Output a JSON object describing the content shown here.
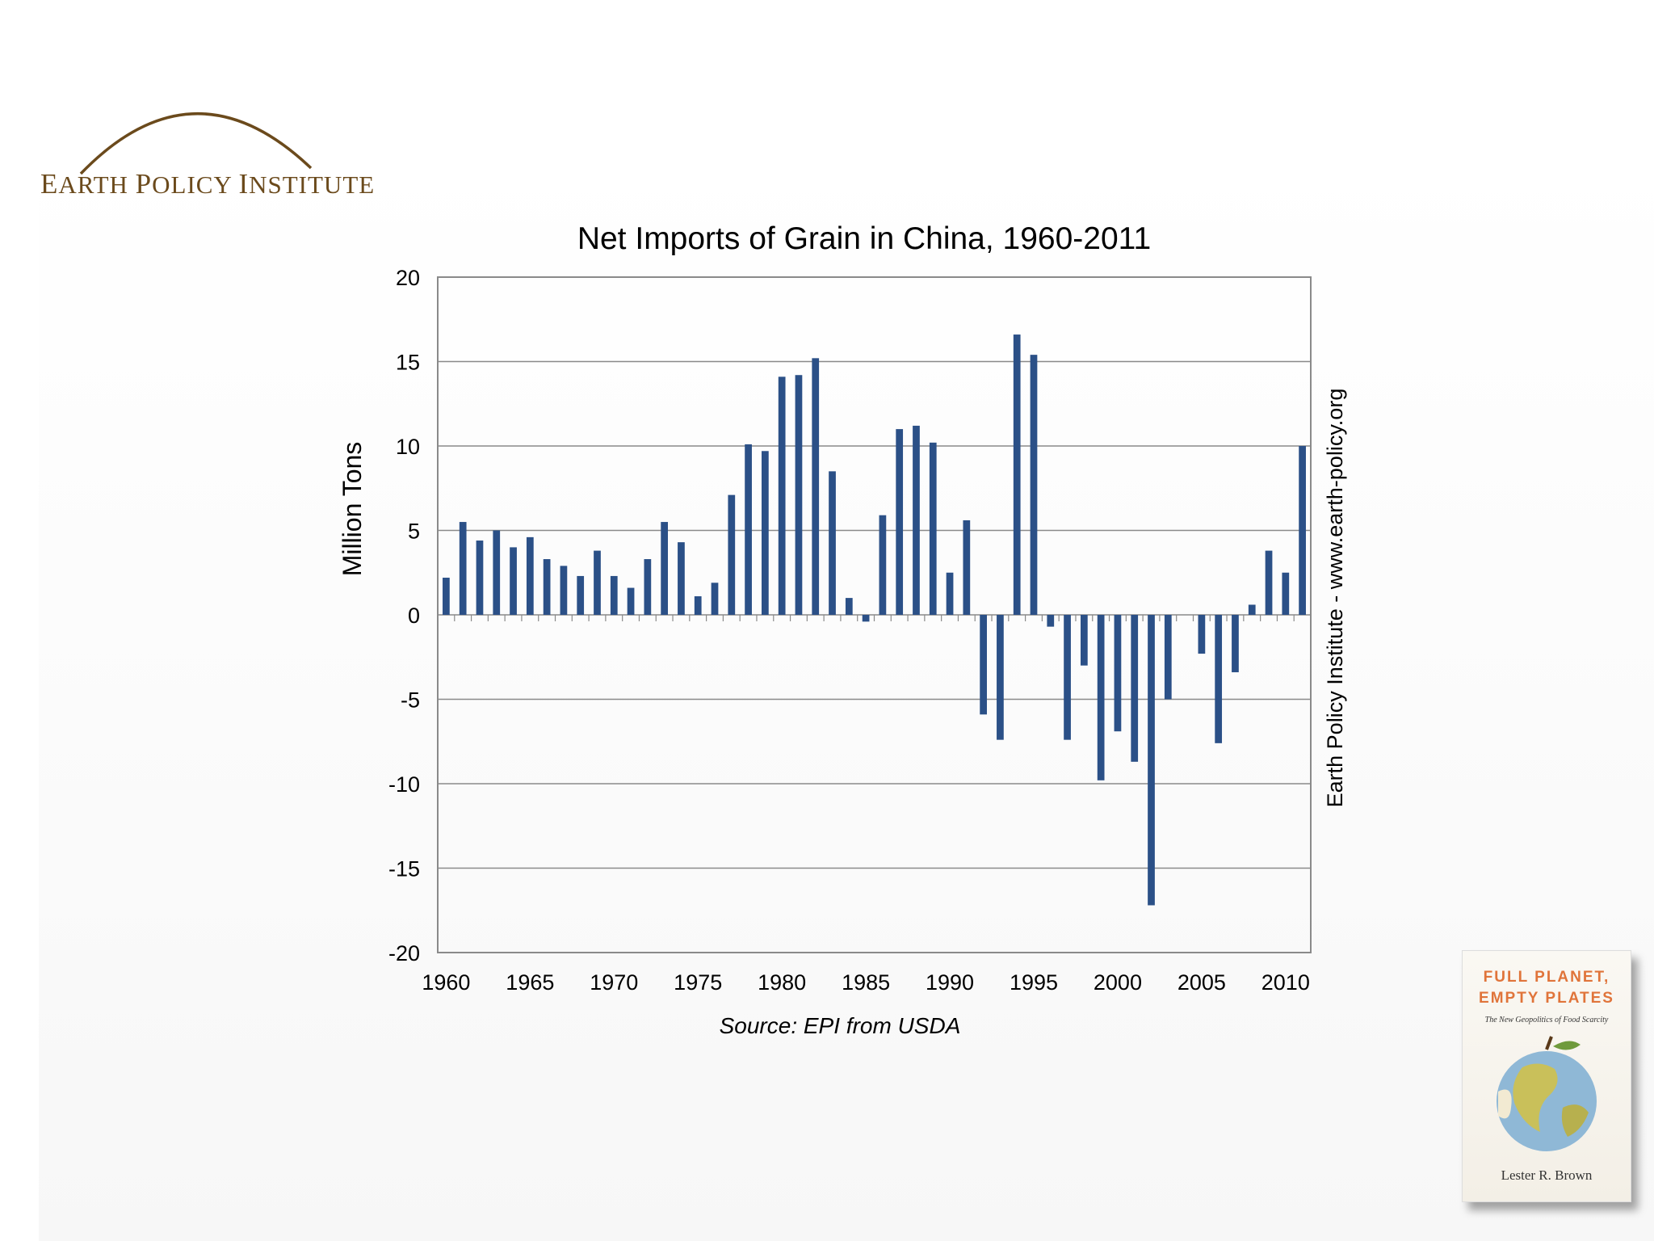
{
  "logo": {
    "text": "Earth Policy Institute",
    "color": "#6b4a1c"
  },
  "chart_data": {
    "type": "bar",
    "title": "Net Imports of Grain in China, 1960-2011",
    "xlabel": "",
    "ylabel": "Million Tons",
    "ylim": [
      -20,
      20
    ],
    "yticks": [
      20,
      15,
      10,
      5,
      0,
      -5,
      -10,
      -15,
      -20
    ],
    "xticks": [
      1960,
      1965,
      1970,
      1975,
      1980,
      1985,
      1990,
      1995,
      2000,
      2005,
      2010
    ],
    "grid": true,
    "bar_color": "#2b5087",
    "x": [
      1960,
      1961,
      1962,
      1963,
      1964,
      1965,
      1966,
      1967,
      1968,
      1969,
      1970,
      1971,
      1972,
      1973,
      1974,
      1975,
      1976,
      1977,
      1978,
      1979,
      1980,
      1981,
      1982,
      1983,
      1984,
      1985,
      1986,
      1987,
      1988,
      1989,
      1990,
      1991,
      1992,
      1993,
      1994,
      1995,
      1996,
      1997,
      1998,
      1999,
      2000,
      2001,
      2002,
      2003,
      2004,
      2005,
      2006,
      2007,
      2008,
      2009,
      2010,
      2011
    ],
    "values": [
      2.2,
      5.5,
      4.4,
      5.0,
      4.0,
      4.6,
      3.3,
      2.9,
      2.3,
      3.8,
      2.3,
      1.6,
      3.3,
      5.5,
      4.3,
      1.1,
      1.9,
      7.1,
      10.1,
      9.7,
      14.1,
      14.2,
      15.2,
      8.5,
      1.0,
      -0.4,
      5.9,
      11.0,
      11.2,
      10.2,
      2.5,
      5.6,
      -5.9,
      -7.4,
      16.6,
      15.4,
      -0.7,
      -7.4,
      -3.0,
      -9.8,
      -6.9,
      -8.7,
      -17.2,
      -5.0,
      0.0,
      -2.3,
      -7.6,
      -3.4,
      0.6,
      3.8,
      2.5,
      10.0
    ]
  },
  "side_credit": "Earth Policy Institute - www.earth-policy.org",
  "source": "Source: EPI from USDA",
  "book": {
    "title_line1": "FULL PLANET,",
    "title_line2": "EMPTY PLATES",
    "subtitle": "The New Geopolitics of Food Scarcity",
    "author": "Lester R. Brown",
    "title_color": "#e0743a"
  }
}
